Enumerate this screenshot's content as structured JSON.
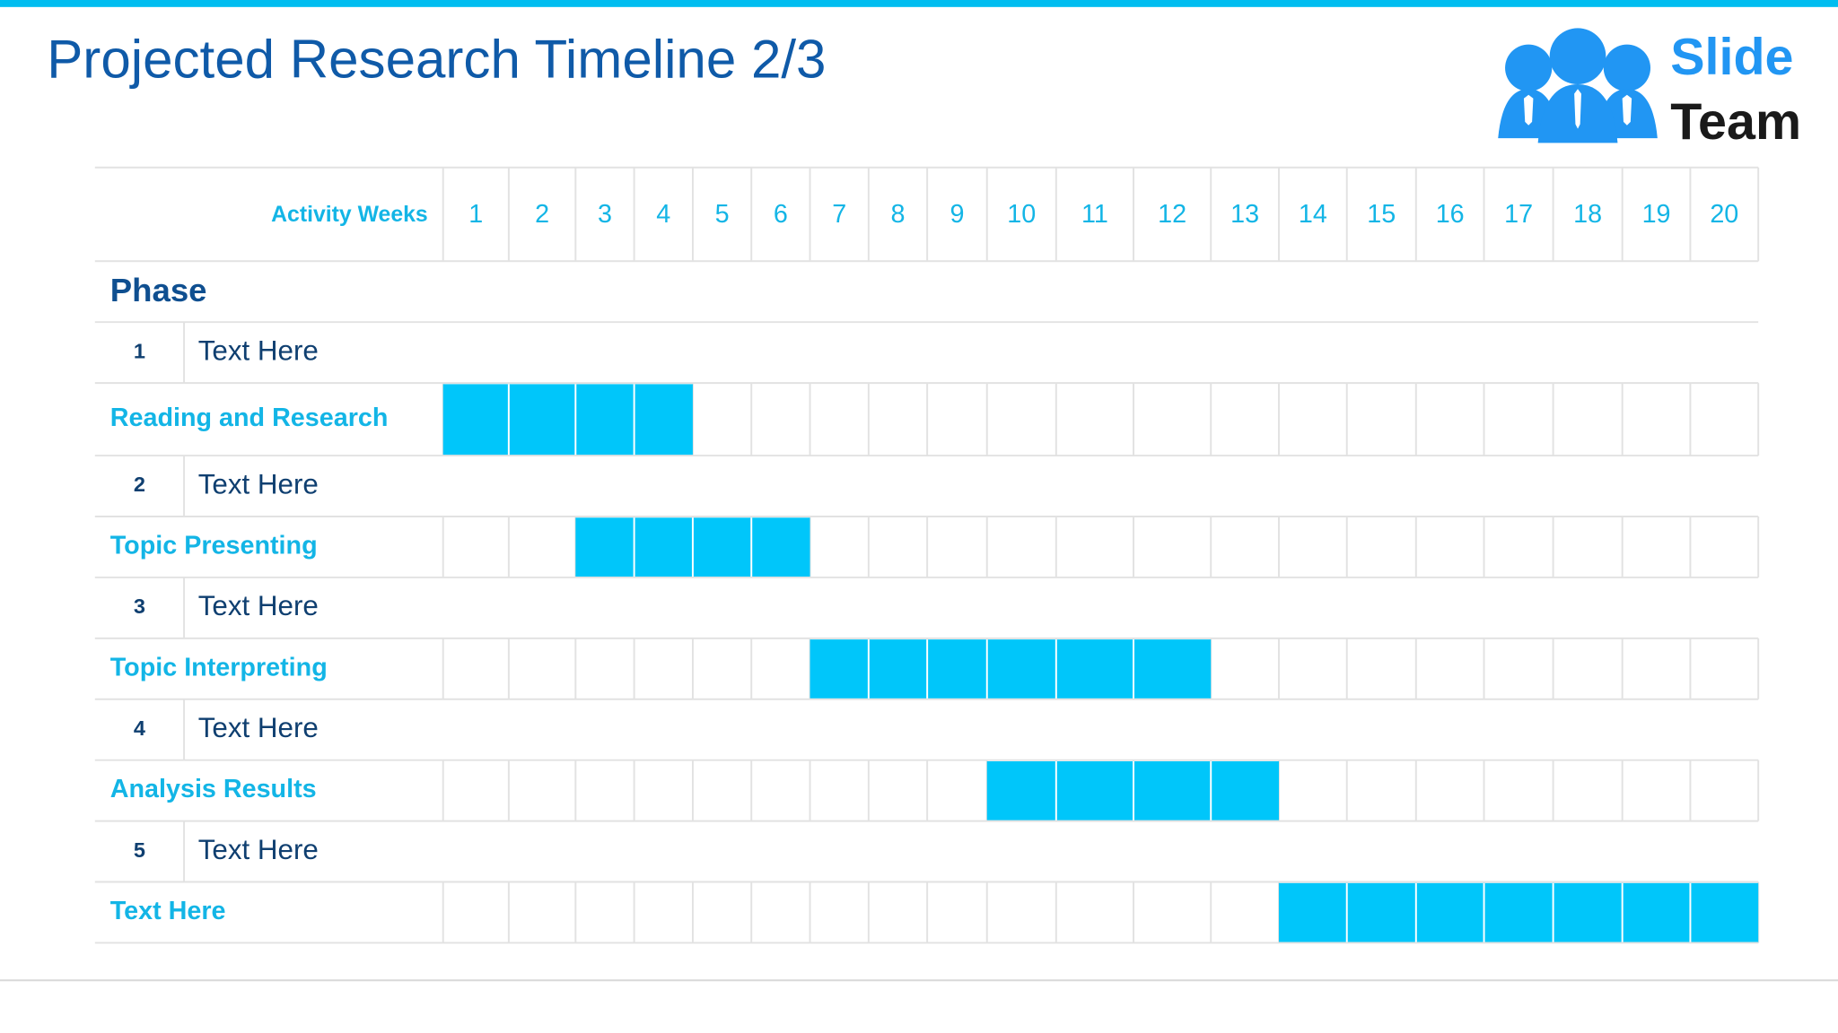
{
  "title": "Projected Research Timeline 2/3",
  "logo": {
    "line1": "Slide",
    "line2": "Team"
  },
  "table": {
    "header": "Activity Weeks",
    "weeks": [
      1,
      2,
      3,
      4,
      5,
      6,
      7,
      8,
      9,
      10,
      11,
      12,
      13,
      14,
      15,
      16,
      17,
      18,
      19,
      20
    ],
    "phase_label": "Phase",
    "phases": [
      {
        "number": 1,
        "text": "Text Here",
        "task": {
          "name": "Reading and Research",
          "start": 1,
          "end": 4
        }
      },
      {
        "number": 2,
        "text": "Text Here",
        "task": {
          "name": "Topic Presenting",
          "start": 3,
          "end": 6
        }
      },
      {
        "number": 3,
        "text": "Text Here",
        "task": {
          "name": "Topic Interpreting",
          "start": 7,
          "end": 12
        }
      },
      {
        "number": 4,
        "text": "Text Here",
        "task": {
          "name": "Analysis Results",
          "start": 10,
          "end": 13
        }
      },
      {
        "number": 5,
        "text": "Text Here",
        "task": {
          "name": "Text Here",
          "start": 14,
          "end": 20
        }
      }
    ]
  }
}
